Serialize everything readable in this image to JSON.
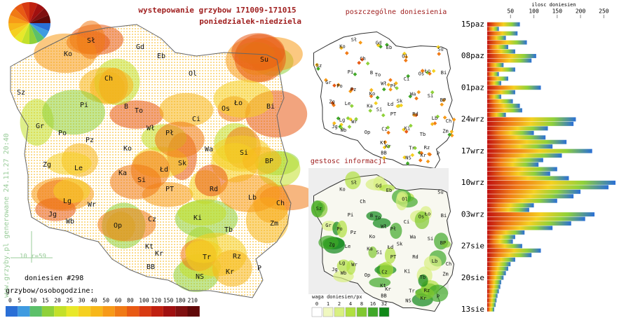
{
  "header": {
    "title": "wystepowanie grzybow 171009-171015",
    "subtitle": "poniedzialek-niedziela",
    "panel1": "poszczególne doniesienia",
    "panel2": "gestosc informacji",
    "watermark": "www.grzyby.pl generowane 24.11.27 20:40",
    "scale_note": "10 r=59",
    "reports": "doniesien #298"
  },
  "map": {
    "labels": [
      "Sł",
      "Gd",
      "Ko",
      "Eb",
      "Su",
      "Ol",
      "Ch",
      "Sz",
      "Pi",
      "B",
      "To",
      "Ło",
      "Os",
      "Bi",
      "Gr",
      "Wł",
      "Ci",
      "Pł",
      "Po",
      "Pz",
      "Ko",
      "Wa",
      "Si",
      "BP",
      "Zg",
      "Le",
      "Ka",
      "Łd",
      "Sk",
      "Si",
      "PT",
      "Rd",
      "Lb",
      "Ch",
      "Lg",
      "Wr",
      "Jg",
      "Wb",
      "Op",
      "Cz",
      "Ki",
      "Tb",
      "Zm",
      "Kt",
      "Kr",
      "Tr",
      "Rz",
      "BB",
      "NS",
      "Kr",
      "P"
    ]
  },
  "legend": {
    "title": "grzybow/osobogodzine:",
    "values": [
      0,
      5,
      10,
      15,
      20,
      25,
      30,
      40,
      50,
      60,
      80,
      100,
      120,
      150,
      180,
      210
    ],
    "colors": [
      "#2a6fd6",
      "#3f9be0",
      "#5cc06a",
      "#8fd13a",
      "#c3e02a",
      "#e8e82a",
      "#f5d020",
      "#f7b71a",
      "#f79a18",
      "#f07a16",
      "#e85a14",
      "#d83a12",
      "#c02010",
      "#a01010",
      "#801010",
      "#600808"
    ]
  },
  "density_legend": {
    "title": "waga doniesien/px",
    "values": [
      0,
      1,
      2,
      4,
      8,
      16,
      32
    ],
    "colors": [
      "#ffffff",
      "#f0f8c0",
      "#d8f080",
      "#b0e040",
      "#80c830",
      "#40a828",
      "#108818"
    ]
  },
  "chart_data": {
    "type": "bar",
    "orientation": "horizontal",
    "xlabel": "ilosc doniesien",
    "xlim": [
      0,
      275
    ],
    "xticks": [
      50,
      100,
      150,
      200,
      250
    ],
    "categories": [
      "15paz",
      null,
      null,
      null,
      null,
      null,
      null,
      "08paz",
      null,
      null,
      null,
      null,
      null,
      null,
      "01paz",
      null,
      null,
      null,
      null,
      null,
      null,
      "24wrz",
      null,
      null,
      null,
      null,
      null,
      null,
      "17wrz",
      null,
      null,
      null,
      null,
      null,
      null,
      "10wrz",
      null,
      null,
      null,
      null,
      null,
      null,
      "03wrz",
      null,
      null,
      null,
      null,
      null,
      null,
      "27sie",
      null,
      null,
      null,
      null,
      null,
      null,
      "20sie",
      null,
      null,
      null,
      null,
      null,
      null,
      "13sie"
    ],
    "values": [
      70,
      25,
      65,
      40,
      85,
      45,
      60,
      105,
      95,
      35,
      60,
      25,
      45,
      30,
      115,
      60,
      30,
      55,
      70,
      75,
      40,
      190,
      185,
      130,
      100,
      125,
      170,
      140,
      225,
      160,
      120,
      110,
      150,
      135,
      175,
      275,
      260,
      200,
      185,
      150,
      100,
      90,
      230,
      210,
      180,
      140,
      80,
      60,
      55,
      75,
      115,
      95,
      60,
      50,
      45,
      40,
      35,
      30,
      28,
      25,
      22,
      20,
      18,
      15
    ]
  }
}
